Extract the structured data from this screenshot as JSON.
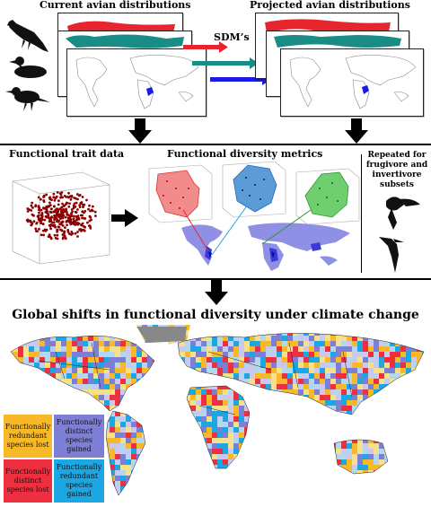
{
  "top": {
    "current_title": "Current avian distributions",
    "projected_title": "Projected avian distributions",
    "sdm_label": "SDM’s"
  },
  "middle": {
    "trait_title": "Functional trait data",
    "metrics_title": "Functional diversity metrics",
    "repeated_text": "Repeated for frugivore and invertivore subsets"
  },
  "bottom": {
    "title": "Global shifts in functional diversity under climate change",
    "legend": [
      {
        "text": "Functionally redundant species lost",
        "color": "#f7b928"
      },
      {
        "text": "Functionally distinct species gained",
        "color": "#7d7fd6"
      },
      {
        "text": "Functionally distinct species lost",
        "color": "#ee2f3f"
      },
      {
        "text": "Functionally redundant species gained",
        "color": "#1aa7e3"
      }
    ]
  },
  "colors": {
    "red_map": "#e8242c",
    "teal_map": "#1a8c86",
    "blue_arrow": "#1a1ae6",
    "red_arrow": "#e8242c",
    "teal_arrow": "#1a8c86",
    "hull_red": "#f28b8b",
    "hull_blue": "#5a9bd8",
    "hull_green": "#6fcf6f",
    "trait_points": "#8b0000"
  }
}
